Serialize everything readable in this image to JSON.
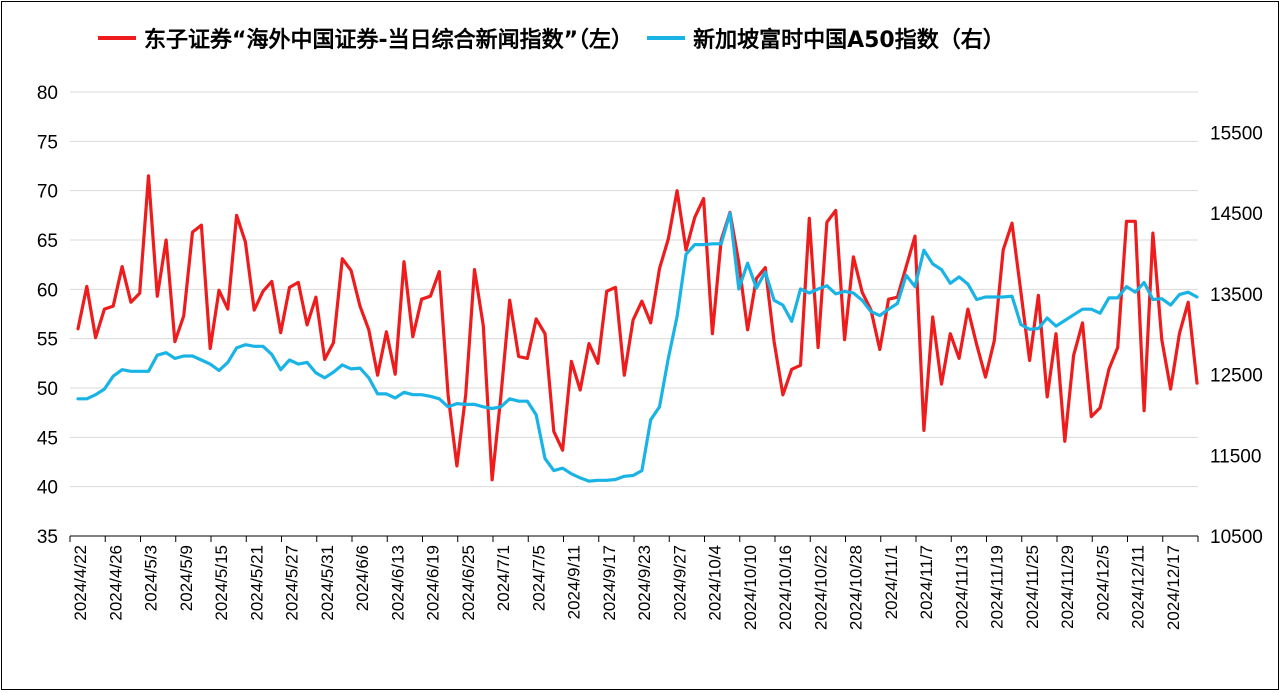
{
  "chart_data": {
    "type": "line",
    "title": "",
    "legend_position": "top",
    "grid": true,
    "colors": {
      "series1": "#ee1c1c",
      "series2": "#1ab3e6",
      "grid": "#d9d9d9",
      "axis": "#000000"
    },
    "y_left": {
      "min": 35,
      "max": 80,
      "ticks": [
        "80",
        "75",
        "70",
        "65",
        "60",
        "55",
        "50",
        "45",
        "40",
        "35"
      ]
    },
    "y_right": {
      "min": 10500,
      "max": 16000,
      "ticks": [
        "15500",
        "14500",
        "13500",
        "12500",
        "11500",
        "10500"
      ]
    },
    "x_ticks": [
      "2024/4/22",
      "2024/4/26",
      "2024/5/3",
      "2024/5/9",
      "2024/5/15",
      "2024/5/21",
      "2024/5/27",
      "2024/5/31",
      "2024/6/6",
      "2024/6/13",
      "2024/6/19",
      "2024/6/25",
      "2024/7/1",
      "2024/7/5",
      "2024/9/11",
      "2024/9/17",
      "2024/9/23",
      "2024/9/27",
      "2024/10/4",
      "2024/10/10",
      "2024/10/16",
      "2024/10/22",
      "2024/10/28",
      "2024/11/1",
      "2024/11/7",
      "2024/11/13",
      "2024/11/19",
      "2024/11/25",
      "2024/11/29",
      "2024/12/5",
      "2024/12/11",
      "2024/12/17"
    ],
    "series": [
      {
        "name": "东子证券“海外中国证券-当日综合新闻指数”（左）",
        "axis": "left",
        "values": [
          56.0,
          60.3,
          55.1,
          58.0,
          58.3,
          62.3,
          58.7,
          59.6,
          71.5,
          59.3,
          65.0,
          54.7,
          57.3,
          65.8,
          66.5,
          54.0,
          59.9,
          58.0,
          67.5,
          64.8,
          57.9,
          59.8,
          60.8,
          55.6,
          60.2,
          60.7,
          56.4,
          59.2,
          52.9,
          54.6,
          63.1,
          61.9,
          58.3,
          55.9,
          51.3,
          55.7,
          51.4,
          62.8,
          55.2,
          59.0,
          59.3,
          61.8,
          49.3,
          42.1,
          49.3,
          62.0,
          56.3,
          40.7,
          49.2,
          58.9,
          53.2,
          53.0,
          57.0,
          55.5,
          45.6,
          43.7,
          52.7,
          49.8,
          54.5,
          52.5,
          59.8,
          60.2,
          51.3,
          56.9,
          58.8,
          56.6,
          62.1,
          65.1,
          70.0,
          64.0,
          67.3,
          69.2,
          55.5,
          65.0,
          67.8,
          62.7,
          55.9,
          61.1,
          62.2,
          54.7,
          49.3,
          51.9,
          52.3,
          67.2,
          54.1,
          66.8,
          68.0,
          54.9,
          63.3,
          59.7,
          57.9,
          53.9,
          59.0,
          59.2,
          62.3,
          65.4,
          45.7,
          57.2,
          50.4,
          55.5,
          53.0,
          58.0,
          54.4,
          51.1,
          54.8,
          64.0,
          66.7,
          59.8,
          52.8,
          59.4,
          49.1,
          55.5,
          44.6,
          53.3,
          56.6,
          47.1,
          48.0,
          51.9,
          54.1,
          66.9,
          66.9,
          47.7,
          65.7,
          54.9,
          49.9,
          55.5,
          58.7,
          50.5
        ]
      },
      {
        "name": "新加坡富时中国A50指数（右）",
        "axis": "right",
        "values": [
          12200,
          12200,
          12250,
          12320,
          12480,
          12560,
          12540,
          12540,
          12540,
          12740,
          12770,
          12700,
          12730,
          12730,
          12680,
          12630,
          12550,
          12650,
          12830,
          12870,
          12850,
          12850,
          12750,
          12560,
          12680,
          12630,
          12650,
          12520,
          12460,
          12530,
          12620,
          12570,
          12580,
          12460,
          12260,
          12260,
          12210,
          12280,
          12250,
          12250,
          12230,
          12200,
          12100,
          12140,
          12130,
          12130,
          12100,
          12080,
          12100,
          12200,
          12170,
          12170,
          12000,
          11460,
          11310,
          11340,
          11270,
          11220,
          11180,
          11190,
          11190,
          11200,
          11240,
          11250,
          11310,
          11940,
          12100,
          12700,
          13220,
          13990,
          14110,
          14110,
          14120,
          14120,
          14500,
          13560,
          13880,
          13570,
          13770,
          13420,
          13360,
          13160,
          13560,
          13510,
          13560,
          13600,
          13500,
          13530,
          13510,
          13420,
          13280,
          13230,
          13310,
          13380,
          13730,
          13590,
          14040,
          13870,
          13800,
          13630,
          13710,
          13620,
          13430,
          13460,
          13460,
          13460,
          13470,
          13120,
          13060,
          13070,
          13200,
          13100,
          13170,
          13240,
          13310,
          13310,
          13260,
          13450,
          13450,
          13590,
          13520,
          13640,
          13430,
          13440,
          13360,
          13490,
          13520,
          13460
        ]
      }
    ]
  }
}
